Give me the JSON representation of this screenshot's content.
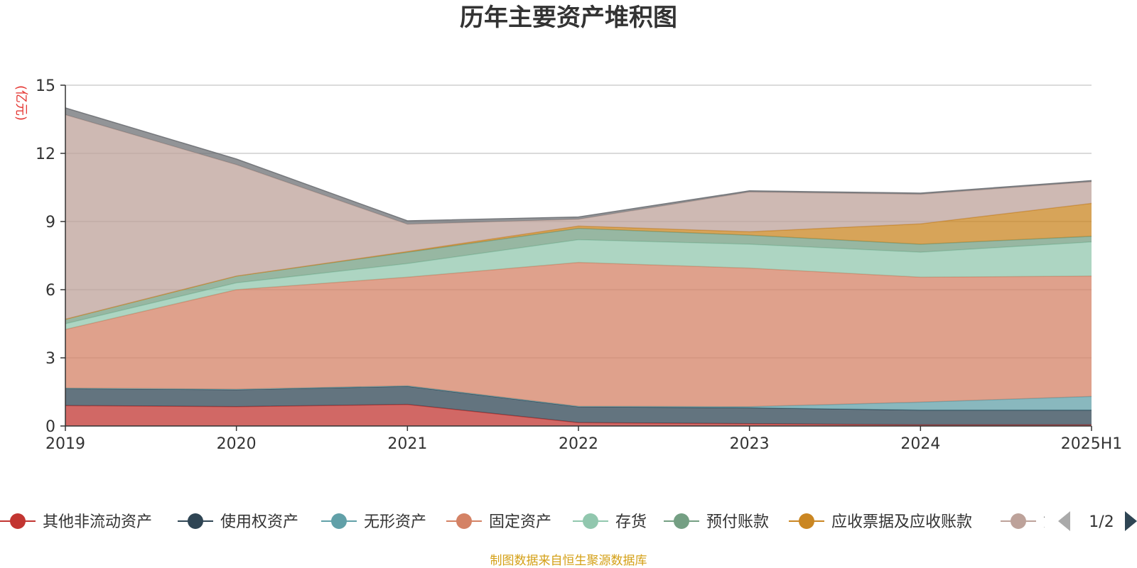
{
  "chart_data": {
    "type": "area",
    "stacked": true,
    "title": "历年主要资产堆积图",
    "ylabel": "(亿元)",
    "xlabel": "",
    "ylim": [
      0,
      15
    ],
    "yticks": [
      0,
      3,
      6,
      9,
      12,
      15
    ],
    "grid": true,
    "legend_position": "bottom",
    "categories": [
      "2019",
      "2020",
      "2021",
      "2022",
      "2023",
      "2024",
      "2025H1"
    ],
    "series": [
      {
        "name": "其他非流动资产",
        "color": "#c23531",
        "values": [
          0.9,
          0.85,
          0.95,
          0.15,
          0.1,
          0.05,
          0.05
        ]
      },
      {
        "name": "使用权资产",
        "color": "#2f4554",
        "values": [
          0.75,
          0.75,
          0.8,
          0.7,
          0.7,
          0.65,
          0.65
        ]
      },
      {
        "name": "无形资产",
        "color": "#61a0a8",
        "values": [
          0.02,
          0.02,
          0.02,
          0.02,
          0.05,
          0.35,
          0.6
        ]
      },
      {
        "name": "固定资产",
        "color": "#d48265",
        "values": [
          2.58,
          4.38,
          4.78,
          6.33,
          6.1,
          5.5,
          5.3
        ]
      },
      {
        "name": "存货",
        "color": "#91c7ae",
        "values": [
          0.25,
          0.3,
          0.6,
          1.0,
          1.05,
          1.1,
          1.5
        ]
      },
      {
        "name": "预付账款",
        "color": "#749f83",
        "values": [
          0.2,
          0.3,
          0.5,
          0.5,
          0.4,
          0.35,
          0.25
        ]
      },
      {
        "name": "应收票据及应收账款",
        "color": "#ca8622",
        "values": [
          0.0,
          0.0,
          0.03,
          0.1,
          0.15,
          0.9,
          1.45
        ]
      },
      {
        "name": "货币资金",
        "color": "#bda29a",
        "values": [
          9.0,
          4.9,
          1.2,
          0.3,
          1.75,
          1.3,
          0.95
        ]
      },
      {
        "name": "",
        "color": "#6e7074",
        "values": [
          0.3,
          0.25,
          0.15,
          0.1,
          0.05,
          0.05,
          0.05
        ]
      }
    ]
  },
  "legend": {
    "items": [
      {
        "label": "其他非流动资产",
        "color": "#c23531"
      },
      {
        "label": "使用权资产",
        "color": "#2f4554"
      },
      {
        "label": "无形资产",
        "color": "#61a0a8"
      },
      {
        "label": "固定资产",
        "color": "#d48265"
      },
      {
        "label": "存货",
        "color": "#91c7ae"
      },
      {
        "label": "预付账款",
        "color": "#749f83"
      },
      {
        "label": "应收票据及应收账款",
        "color": "#ca8622"
      },
      {
        "label": "货",
        "color": "#bda29a"
      }
    ],
    "page": "1/2",
    "prev_icon": "triangle-left-icon",
    "next_icon": "triangle-right-icon"
  },
  "footer": {
    "source": "制图数据来自恒生聚源数据库"
  }
}
